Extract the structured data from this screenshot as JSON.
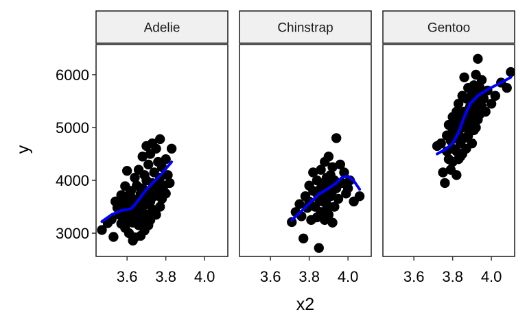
{
  "chart_data": {
    "type": "scatter",
    "subtype": "faceted scatter with smooth trend line",
    "xlabel": "x2",
    "ylabel": "y",
    "x_ticks": [
      "3.6",
      "3.8",
      "4.0"
    ],
    "x_tick_values": [
      3.6,
      3.8,
      4.0
    ],
    "y_ticks": [
      "3000",
      "4000",
      "5000",
      "6000"
    ],
    "y_tick_values": [
      3000,
      4000,
      5000,
      6000
    ],
    "xlim": [
      3.44,
      4.12
    ],
    "ylim": [
      2560,
      6570
    ],
    "grid": false,
    "colors": {
      "points": "#000000",
      "smooth": "#0000ff",
      "strip_fill": "#f0f0f0",
      "border": "#1a1a1a"
    },
    "panels": [
      {
        "label": "Adelie",
        "points": [
          [
            3.47,
            3060
          ],
          [
            3.5,
            3190
          ],
          [
            3.52,
            3260
          ],
          [
            3.53,
            2930
          ],
          [
            3.54,
            3600
          ],
          [
            3.55,
            3480
          ],
          [
            3.56,
            3350
          ],
          [
            3.57,
            3720
          ],
          [
            3.57,
            3180
          ],
          [
            3.58,
            3550
          ],
          [
            3.58,
            3300
          ],
          [
            3.59,
            3890
          ],
          [
            3.59,
            3100
          ],
          [
            3.6,
            4180
          ],
          [
            3.6,
            3700
          ],
          [
            3.6,
            3420
          ],
          [
            3.6,
            3250
          ],
          [
            3.61,
            3560
          ],
          [
            3.61,
            3000
          ],
          [
            3.62,
            3800
          ],
          [
            3.62,
            3350
          ],
          [
            3.63,
            3650
          ],
          [
            3.63,
            3200
          ],
          [
            3.63,
            2860
          ],
          [
            3.64,
            4050
          ],
          [
            3.64,
            3480
          ],
          [
            3.64,
            2920
          ],
          [
            3.65,
            3900
          ],
          [
            3.65,
            3300
          ],
          [
            3.66,
            4200
          ],
          [
            3.66,
            3600
          ],
          [
            3.66,
            3150
          ],
          [
            3.67,
            3750
          ],
          [
            3.67,
            3400
          ],
          [
            3.67,
            2950
          ],
          [
            3.68,
            4450
          ],
          [
            3.68,
            3850
          ],
          [
            3.68,
            3250
          ],
          [
            3.69,
            4100
          ],
          [
            3.69,
            3550
          ],
          [
            3.69,
            3050
          ],
          [
            3.7,
            4650
          ],
          [
            3.7,
            4000
          ],
          [
            3.7,
            3700
          ],
          [
            3.7,
            3350
          ],
          [
            3.71,
            4300
          ],
          [
            3.71,
            3800
          ],
          [
            3.71,
            3150
          ],
          [
            3.72,
            4500
          ],
          [
            3.72,
            3600
          ],
          [
            3.72,
            3250
          ],
          [
            3.73,
            4700
          ],
          [
            3.73,
            3950
          ],
          [
            3.73,
            3450
          ],
          [
            3.74,
            4150
          ],
          [
            3.74,
            3700
          ],
          [
            3.75,
            4600
          ],
          [
            3.75,
            3900
          ],
          [
            3.75,
            3350
          ],
          [
            3.76,
            4350
          ],
          [
            3.76,
            3800
          ],
          [
            3.77,
            4780
          ],
          [
            3.77,
            4050
          ],
          [
            3.77,
            3500
          ],
          [
            3.78,
            4250
          ],
          [
            3.78,
            3650
          ],
          [
            3.79,
            3900
          ],
          [
            3.8,
            4400
          ],
          [
            3.8,
            3750
          ],
          [
            3.81,
            4100
          ],
          [
            3.82,
            3950
          ],
          [
            3.83,
            4600
          ],
          [
            3.65,
            3450
          ],
          [
            3.62,
            3600
          ],
          [
            3.68,
            3500
          ],
          [
            3.71,
            3550
          ],
          [
            3.66,
            3350
          ],
          [
            3.58,
            3650
          ],
          [
            3.74,
            3400
          ],
          [
            3.6,
            3300
          ]
        ],
        "smooth": [
          [
            3.47,
            3220
          ],
          [
            3.52,
            3350
          ],
          [
            3.57,
            3430
          ],
          [
            3.62,
            3460
          ],
          [
            3.64,
            3540
          ],
          [
            3.67,
            3680
          ],
          [
            3.7,
            3830
          ],
          [
            3.74,
            3980
          ],
          [
            3.78,
            4130
          ],
          [
            3.83,
            4350
          ]
        ]
      },
      {
        "label": "Chinstrap",
        "points": [
          [
            3.71,
            3210
          ],
          [
            3.73,
            3400
          ],
          [
            3.75,
            3550
          ],
          [
            3.76,
            3320
          ],
          [
            3.77,
            2900
          ],
          [
            3.78,
            3700
          ],
          [
            3.79,
            3480
          ],
          [
            3.8,
            3900
          ],
          [
            3.8,
            3600
          ],
          [
            3.81,
            3250
          ],
          [
            3.82,
            4150
          ],
          [
            3.82,
            3800
          ],
          [
            3.83,
            3500
          ],
          [
            3.84,
            3300
          ],
          [
            3.84,
            4000
          ],
          [
            3.85,
            3650
          ],
          [
            3.85,
            2720
          ],
          [
            3.86,
            4200
          ],
          [
            3.86,
            3850
          ],
          [
            3.86,
            3400
          ],
          [
            3.87,
            3950
          ],
          [
            3.87,
            3600
          ],
          [
            3.88,
            4350
          ],
          [
            3.88,
            3750
          ],
          [
            3.88,
            3250
          ],
          [
            3.89,
            4050
          ],
          [
            3.89,
            3550
          ],
          [
            3.9,
            4450
          ],
          [
            3.9,
            3900
          ],
          [
            3.9,
            3350
          ],
          [
            3.91,
            4100
          ],
          [
            3.91,
            3700
          ],
          [
            3.92,
            4250
          ],
          [
            3.92,
            3800
          ],
          [
            3.92,
            3200
          ],
          [
            3.93,
            4000
          ],
          [
            3.93,
            3500
          ],
          [
            3.94,
            4800
          ],
          [
            3.94,
            3850
          ],
          [
            3.95,
            3650
          ],
          [
            3.96,
            4300
          ],
          [
            3.97,
            3950
          ],
          [
            3.98,
            4150
          ],
          [
            3.99,
            3750
          ],
          [
            4.0,
            3850
          ],
          [
            4.01,
            4000
          ],
          [
            4.03,
            3600
          ],
          [
            4.06,
            3700
          ],
          [
            3.89,
            3450
          ],
          [
            3.84,
            3750
          ]
        ],
        "smooth": [
          [
            3.71,
            3250
          ],
          [
            3.75,
            3380
          ],
          [
            3.8,
            3560
          ],
          [
            3.85,
            3740
          ],
          [
            3.9,
            3850
          ],
          [
            3.94,
            3950
          ],
          [
            3.97,
            4060
          ],
          [
            4.0,
            4080
          ],
          [
            4.03,
            3990
          ],
          [
            4.06,
            3830
          ]
        ]
      },
      {
        "label": "Gentoo",
        "points": [
          [
            3.72,
            4650
          ],
          [
            3.74,
            4700
          ],
          [
            3.75,
            4150
          ],
          [
            3.76,
            3950
          ],
          [
            3.77,
            4550
          ],
          [
            3.77,
            4850
          ],
          [
            3.78,
            5050
          ],
          [
            3.78,
            4400
          ],
          [
            3.79,
            4200
          ],
          [
            3.79,
            4750
          ],
          [
            3.8,
            5200
          ],
          [
            3.8,
            4600
          ],
          [
            3.8,
            4350
          ],
          [
            3.81,
            5050
          ],
          [
            3.81,
            4800
          ],
          [
            3.82,
            5300
          ],
          [
            3.82,
            4550
          ],
          [
            3.82,
            4100
          ],
          [
            3.83,
            5450
          ],
          [
            3.83,
            4900
          ],
          [
            3.83,
            4400
          ],
          [
            3.84,
            5150
          ],
          [
            3.84,
            4700
          ],
          [
            3.85,
            5600
          ],
          [
            3.85,
            5000
          ],
          [
            3.85,
            4500
          ],
          [
            3.86,
            5950
          ],
          [
            3.86,
            5300
          ],
          [
            3.86,
            4800
          ],
          [
            3.87,
            5550
          ],
          [
            3.87,
            5100
          ],
          [
            3.87,
            4600
          ],
          [
            3.88,
            5750
          ],
          [
            3.88,
            5200
          ],
          [
            3.88,
            4850
          ],
          [
            3.89,
            5400
          ],
          [
            3.89,
            4950
          ],
          [
            3.9,
            5650
          ],
          [
            3.9,
            5150
          ],
          [
            3.9,
            4700
          ],
          [
            3.91,
            5800
          ],
          [
            3.91,
            5300
          ],
          [
            3.92,
            6000
          ],
          [
            3.92,
            5450
          ],
          [
            3.92,
            5000
          ],
          [
            3.93,
            6300
          ],
          [
            3.93,
            5600
          ],
          [
            3.93,
            5150
          ],
          [
            3.94,
            5750
          ],
          [
            3.94,
            5250
          ],
          [
            3.95,
            5900
          ],
          [
            3.95,
            5400
          ],
          [
            3.96,
            5550
          ],
          [
            3.97,
            5300
          ],
          [
            3.98,
            5700
          ],
          [
            4.0,
            5450
          ],
          [
            4.02,
            5600
          ],
          [
            4.05,
            5850
          ],
          [
            4.08,
            5750
          ],
          [
            4.1,
            6050
          ],
          [
            3.84,
            4450
          ],
          [
            3.88,
            5050
          ],
          [
            3.91,
            4950
          ],
          [
            3.86,
            5150
          ],
          [
            3.8,
            4950
          ],
          [
            3.89,
            5500
          ]
        ],
        "smooth": [
          [
            3.72,
            4500
          ],
          [
            3.76,
            4580
          ],
          [
            3.8,
            4700
          ],
          [
            3.83,
            4900
          ],
          [
            3.86,
            5200
          ],
          [
            3.89,
            5450
          ],
          [
            3.93,
            5600
          ],
          [
            3.98,
            5720
          ],
          [
            4.04,
            5830
          ],
          [
            4.1,
            5950
          ]
        ]
      }
    ]
  }
}
